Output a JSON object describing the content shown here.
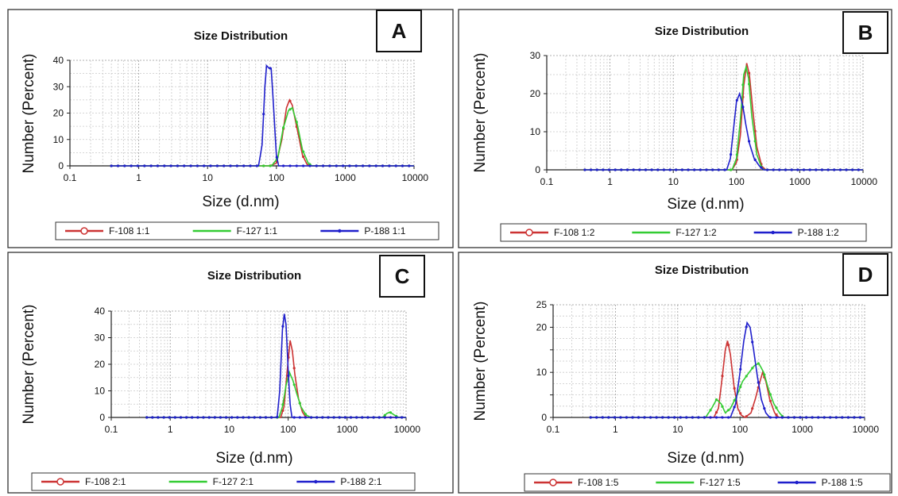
{
  "chart_data": [
    {
      "type": "line",
      "panel": "A",
      "title": "Size Distribution",
      "xlabel": "Size (d.nm)",
      "ylabel": "Number (Percent)",
      "x_scale": "log",
      "xlim": [
        0.1,
        10000
      ],
      "ylim": [
        0,
        40
      ],
      "y_ticks": [
        0,
        10,
        20,
        30,
        40
      ],
      "x_ticks": [
        0.1,
        1,
        10,
        100,
        1000,
        10000
      ],
      "x_tick_labels": [
        "0.1",
        "1",
        "10",
        "100",
        "1000",
        "10000"
      ],
      "grid": true,
      "legend_position": "bottom",
      "series": [
        {
          "name": "F-108 1:1",
          "color": "#cc3333",
          "points": [
            [
              0.4,
              0
            ],
            [
              80,
              0
            ],
            [
              100,
              1
            ],
            [
              120,
              10
            ],
            [
              140,
              22
            ],
            [
              155,
              25
            ],
            [
              170,
              23
            ],
            [
              200,
              14
            ],
            [
              240,
              4
            ],
            [
              280,
              0.5
            ],
            [
              320,
              0
            ],
            [
              10000,
              0
            ]
          ]
        },
        {
          "name": "F-127 1:1",
          "color": "#33cc33",
          "points": [
            [
              0.4,
              0
            ],
            [
              85,
              0
            ],
            [
              105,
              3
            ],
            [
              125,
              14
            ],
            [
              150,
              21
            ],
            [
              170,
              22
            ],
            [
              200,
              16
            ],
            [
              240,
              6
            ],
            [
              290,
              1
            ],
            [
              330,
              0
            ],
            [
              10000,
              0
            ]
          ]
        },
        {
          "name": "P-188 1:1",
          "color": "#1f1fcc",
          "points": [
            [
              0.4,
              0
            ],
            [
              55,
              0
            ],
            [
              62,
              8
            ],
            [
              68,
              30
            ],
            [
              72,
              38
            ],
            [
              78,
              37
            ],
            [
              84,
              37
            ],
            [
              92,
              20
            ],
            [
              100,
              4
            ],
            [
              108,
              0
            ],
            [
              10000,
              0
            ]
          ]
        }
      ]
    },
    {
      "type": "line",
      "panel": "B",
      "title": "Size Distribution",
      "xlabel": "Size (d.nm)",
      "ylabel": "Number (Percent)",
      "x_scale": "log",
      "xlim": [
        0.1,
        10000
      ],
      "ylim": [
        0,
        30
      ],
      "y_ticks": [
        0,
        10,
        20,
        30
      ],
      "x_ticks": [
        0.1,
        1,
        10,
        100,
        1000,
        10000
      ],
      "x_tick_labels": [
        "0.1",
        "1",
        "10",
        "100",
        "1000",
        "10000"
      ],
      "grid": true,
      "legend_position": "bottom",
      "series": [
        {
          "name": "F-108 1:2",
          "color": "#cc3333",
          "points": [
            [
              0.4,
              0
            ],
            [
              85,
              0
            ],
            [
              100,
              2
            ],
            [
              115,
              9
            ],
            [
              130,
              22
            ],
            [
              145,
              28
            ],
            [
              160,
              25
            ],
            [
              180,
              16
            ],
            [
              210,
              6
            ],
            [
              250,
              1
            ],
            [
              290,
              0
            ],
            [
              10000,
              0
            ]
          ]
        },
        {
          "name": "F-127 1:2",
          "color": "#33cc33",
          "points": [
            [
              0.4,
              0
            ],
            [
              85,
              0
            ],
            [
              100,
              3
            ],
            [
              115,
              13
            ],
            [
              130,
              25
            ],
            [
              142,
              27
            ],
            [
              155,
              24
            ],
            [
              175,
              14
            ],
            [
              210,
              4
            ],
            [
              250,
              0.5
            ],
            [
              280,
              0
            ],
            [
              10000,
              0
            ]
          ]
        },
        {
          "name": "P-188 1:2",
          "color": "#1f1fcc",
          "points": [
            [
              0.4,
              0
            ],
            [
              70,
              0
            ],
            [
              80,
              3
            ],
            [
              90,
              11
            ],
            [
              100,
              18
            ],
            [
              112,
              20
            ],
            [
              125,
              17
            ],
            [
              140,
              12
            ],
            [
              160,
              7
            ],
            [
              190,
              3
            ],
            [
              230,
              1
            ],
            [
              270,
              0
            ],
            [
              10000,
              0
            ]
          ]
        }
      ]
    },
    {
      "type": "line",
      "panel": "C",
      "title": "Size Distribution",
      "xlabel": "Size (d.nm)",
      "ylabel": "Number (Percent)",
      "x_scale": "log",
      "xlim": [
        0.1,
        10000
      ],
      "ylim": [
        0,
        40
      ],
      "y_ticks": [
        0,
        10,
        20,
        30,
        40
      ],
      "x_ticks": [
        0.1,
        1,
        10,
        100,
        1000,
        10000
      ],
      "x_tick_labels": [
        "0.1",
        "1",
        "10",
        "100",
        "1000",
        "10000"
      ],
      "grid": true,
      "legend_position": "bottom",
      "series": [
        {
          "name": "F-108 2:1",
          "color": "#cc3333",
          "points": [
            [
              0.4,
              0
            ],
            [
              75,
              0
            ],
            [
              85,
              4
            ],
            [
              95,
              16
            ],
            [
              108,
              29
            ],
            [
              118,
              25
            ],
            [
              130,
              16
            ],
            [
              150,
              7
            ],
            [
              175,
              2
            ],
            [
              200,
              0
            ],
            [
              10000,
              0
            ]
          ]
        },
        {
          "name": "F-127 2:1",
          "color": "#33cc33",
          "points": [
            [
              0.4,
              0
            ],
            [
              70,
              0
            ],
            [
              80,
              4
            ],
            [
              92,
              12
            ],
            [
              105,
              17
            ],
            [
              120,
              14
            ],
            [
              140,
              9
            ],
            [
              165,
              4
            ],
            [
              200,
              1
            ],
            [
              240,
              0
            ],
            [
              4000,
              0
            ],
            [
              4700,
              1.5
            ],
            [
              5300,
              2
            ],
            [
              6200,
              1
            ],
            [
              7500,
              0
            ],
            [
              10000,
              0
            ]
          ]
        },
        {
          "name": "P-188 2:1",
          "color": "#1f1fcc",
          "points": [
            [
              0.4,
              0
            ],
            [
              65,
              0
            ],
            [
              72,
              10
            ],
            [
              80,
              33
            ],
            [
              86,
              39
            ],
            [
              92,
              35
            ],
            [
              100,
              18
            ],
            [
              108,
              5
            ],
            [
              116,
              0
            ],
            [
              10000,
              0
            ]
          ]
        }
      ]
    },
    {
      "type": "line",
      "panel": "D",
      "title": "Size Distribution",
      "xlabel": "Size (d.nm)",
      "ylabel": "Number (Percent)",
      "x_scale": "log",
      "xlim": [
        0.1,
        10000
      ],
      "ylim": [
        0,
        25
      ],
      "y_ticks": [
        0,
        5,
        10,
        15,
        20,
        25
      ],
      "y_tick_labels": [
        "0",
        "",
        "10",
        "",
        "20",
        "25"
      ],
      "x_ticks": [
        0.1,
        1,
        10,
        100,
        1000,
        10000
      ],
      "x_tick_labels": [
        "0.1",
        "1",
        "10",
        "100",
        "1000",
        "10000"
      ],
      "grid": true,
      "legend_position": "bottom",
      "series": [
        {
          "name": "F-108 1:5",
          "color": "#cc3333",
          "points": [
            [
              0.4,
              0
            ],
            [
              38,
              0
            ],
            [
              45,
              2
            ],
            [
              52,
              9
            ],
            [
              58,
              15
            ],
            [
              63,
              17
            ],
            [
              70,
              14
            ],
            [
              80,
              7
            ],
            [
              92,
              2
            ],
            [
              105,
              0.5
            ],
            [
              120,
              0
            ],
            [
              150,
              1
            ],
            [
              175,
              4
            ],
            [
              200,
              7
            ],
            [
              230,
              10
            ],
            [
              260,
              8
            ],
            [
              300,
              4
            ],
            [
              360,
              1
            ],
            [
              420,
              0
            ],
            [
              10000,
              0
            ]
          ]
        },
        {
          "name": "F-127 1:5",
          "color": "#33cc33",
          "points": [
            [
              0.4,
              0
            ],
            [
              28,
              0
            ],
            [
              35,
              2
            ],
            [
              42,
              4
            ],
            [
              50,
              3
            ],
            [
              58,
              1
            ],
            [
              70,
              2
            ],
            [
              90,
              5
            ],
            [
              110,
              8
            ],
            [
              140,
              10
            ],
            [
              170,
              11.5
            ],
            [
              200,
              12
            ],
            [
              240,
              10
            ],
            [
              290,
              6
            ],
            [
              350,
              3
            ],
            [
              430,
              1
            ],
            [
              500,
              0
            ],
            [
              10000,
              0
            ]
          ]
        },
        {
          "name": "P-188 1:5",
          "color": "#1f1fcc",
          "points": [
            [
              0.4,
              0
            ],
            [
              70,
              0
            ],
            [
              85,
              3
            ],
            [
              100,
              10
            ],
            [
              115,
              17
            ],
            [
              130,
              21
            ],
            [
              145,
              20
            ],
            [
              165,
              15
            ],
            [
              190,
              9
            ],
            [
              220,
              4
            ],
            [
              260,
              1
            ],
            [
              300,
              0
            ],
            [
              10000,
              0
            ]
          ]
        }
      ]
    }
  ],
  "panel_letters": [
    "A",
    "B",
    "C",
    "D"
  ]
}
